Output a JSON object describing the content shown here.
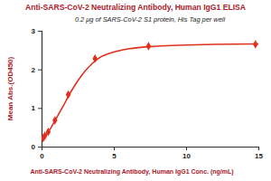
{
  "chart_data": {
    "type": "scatter",
    "title": "Anti-SARS-CoV-2 Neutralizing Antibody, Human IgG1 ELISA",
    "subtitle": "0.2 μg of SARS-CoV-2 S1 protein, His Tag per well",
    "x_label": "Anti-SARS-CoV-2 Neutralizing Antibody, Human IgG1 Conc. (ng/mL)",
    "y_label": "Mean Abs.(OD450)",
    "xlim": [
      0,
      15
    ],
    "xticks": [
      0,
      5,
      10,
      15
    ],
    "ylim": [
      0,
      3
    ],
    "yticks": [
      0,
      1,
      2,
      3
    ],
    "grid": false,
    "series": [
      {
        "type": "scatter",
        "marker": "diamond",
        "color": "#e0301e",
        "x": [
          0.115,
          0.23,
          0.46,
          0.925,
          1.85,
          3.7,
          7.4,
          14.8
        ],
        "values": [
          0.22,
          0.28,
          0.38,
          0.68,
          1.35,
          2.28,
          2.6,
          2.65
        ]
      },
      {
        "type": "line",
        "line_style": "solid",
        "color": "#e0301e",
        "x": [
          0,
          0.5,
          1,
          1.5,
          2,
          2.5,
          3,
          3.5,
          4,
          5,
          6,
          8,
          10,
          12,
          15
        ],
        "values": [
          0.2,
          0.4,
          0.72,
          1.05,
          1.4,
          1.7,
          1.95,
          2.15,
          2.3,
          2.45,
          2.53,
          2.6,
          2.63,
          2.65,
          2.66
        ]
      }
    ]
  }
}
